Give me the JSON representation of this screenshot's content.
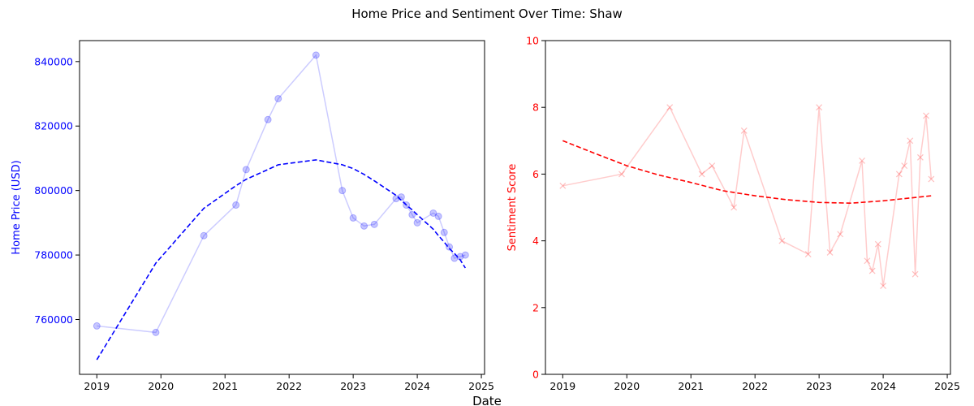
{
  "figure": {
    "title": "Home Price and Sentiment Over Time: Shaw",
    "shared_xlabel": "Date"
  },
  "chart_data": [
    {
      "type": "line",
      "name": "price-panel",
      "xlabel": "",
      "ylabel": "Home Price (USD)",
      "axis_color": "#0000ff",
      "x_ticks": [
        2019,
        2020,
        2021,
        2022,
        2023,
        2024,
        2025
      ],
      "y_ticks": [
        760000,
        780000,
        800000,
        820000,
        840000
      ],
      "xlim": [
        2018.73,
        2025.05
      ],
      "ylim": [
        743000,
        846500
      ],
      "grid": false,
      "series": [
        {
          "style": "observed",
          "color": "#0000ff",
          "marker": "circle",
          "x": [
            2019.0,
            2019.92,
            2020.67,
            2021.17,
            2021.33,
            2021.67,
            2021.83,
            2022.42,
            2022.83,
            2023.0,
            2023.17,
            2023.33,
            2023.67,
            2023.75,
            2023.83,
            2023.92,
            2024.0,
            2024.25,
            2024.33,
            2024.42,
            2024.5,
            2024.58,
            2024.67,
            2024.75
          ],
          "y": [
            758000,
            756000,
            786000,
            795500,
            806500,
            822000,
            828500,
            842000,
            800000,
            791500,
            789000,
            789500,
            797500,
            798000,
            795500,
            792500,
            790000,
            793000,
            792000,
            787000,
            782500,
            779000,
            779500,
            780000
          ]
        },
        {
          "style": "trend",
          "color": "#0000ff",
          "x": [
            2019.0,
            2019.92,
            2020.67,
            2021.17,
            2021.33,
            2021.67,
            2021.83,
            2022.42,
            2022.83,
            2023.0,
            2023.17,
            2023.33,
            2023.67,
            2023.75,
            2023.83,
            2023.92,
            2024.0,
            2024.25,
            2024.33,
            2024.42,
            2024.5,
            2024.58,
            2024.67,
            2024.75
          ],
          "y": [
            747500,
            777500,
            794500,
            801500,
            803500,
            806500,
            808000,
            809500,
            808000,
            806800,
            805000,
            803000,
            798500,
            797000,
            795500,
            794000,
            792500,
            788000,
            786000,
            784000,
            782000,
            780500,
            778500,
            776000
          ]
        }
      ]
    },
    {
      "type": "line",
      "name": "sentiment-panel",
      "xlabel": "",
      "ylabel": "Sentiment Score",
      "axis_color": "#ff0000",
      "x_ticks": [
        2019,
        2020,
        2021,
        2022,
        2023,
        2024,
        2025
      ],
      "y_ticks": [
        0,
        2,
        4,
        6,
        8,
        10
      ],
      "xlim": [
        2018.73,
        2025.05
      ],
      "ylim": [
        0,
        10
      ],
      "grid": false,
      "series": [
        {
          "style": "observed",
          "color": "#ff0000",
          "marker": "x",
          "x": [
            2019.0,
            2019.92,
            2020.67,
            2021.17,
            2021.33,
            2021.67,
            2021.83,
            2022.42,
            2022.83,
            2023.0,
            2023.17,
            2023.33,
            2023.67,
            2023.75,
            2023.83,
            2023.92,
            2024.0,
            2024.25,
            2024.33,
            2024.42,
            2024.5,
            2024.58,
            2024.67,
            2024.75
          ],
          "y": [
            5.65,
            6.0,
            8.0,
            6.0,
            6.25,
            5.0,
            7.3,
            4.0,
            3.6,
            8.0,
            3.65,
            4.2,
            6.4,
            3.4,
            3.1,
            3.9,
            2.65,
            6.0,
            6.25,
            7.0,
            3.0,
            6.5,
            7.75,
            5.85
          ]
        },
        {
          "style": "trend",
          "color": "#ff0000",
          "x": [
            2019.0,
            2019.5,
            2020.0,
            2020.5,
            2021.0,
            2021.5,
            2022.0,
            2022.5,
            2023.0,
            2023.5,
            2024.0,
            2024.5,
            2024.75
          ],
          "y": [
            7.0,
            6.62,
            6.25,
            5.97,
            5.75,
            5.5,
            5.35,
            5.23,
            5.15,
            5.13,
            5.2,
            5.3,
            5.35
          ]
        }
      ]
    }
  ]
}
